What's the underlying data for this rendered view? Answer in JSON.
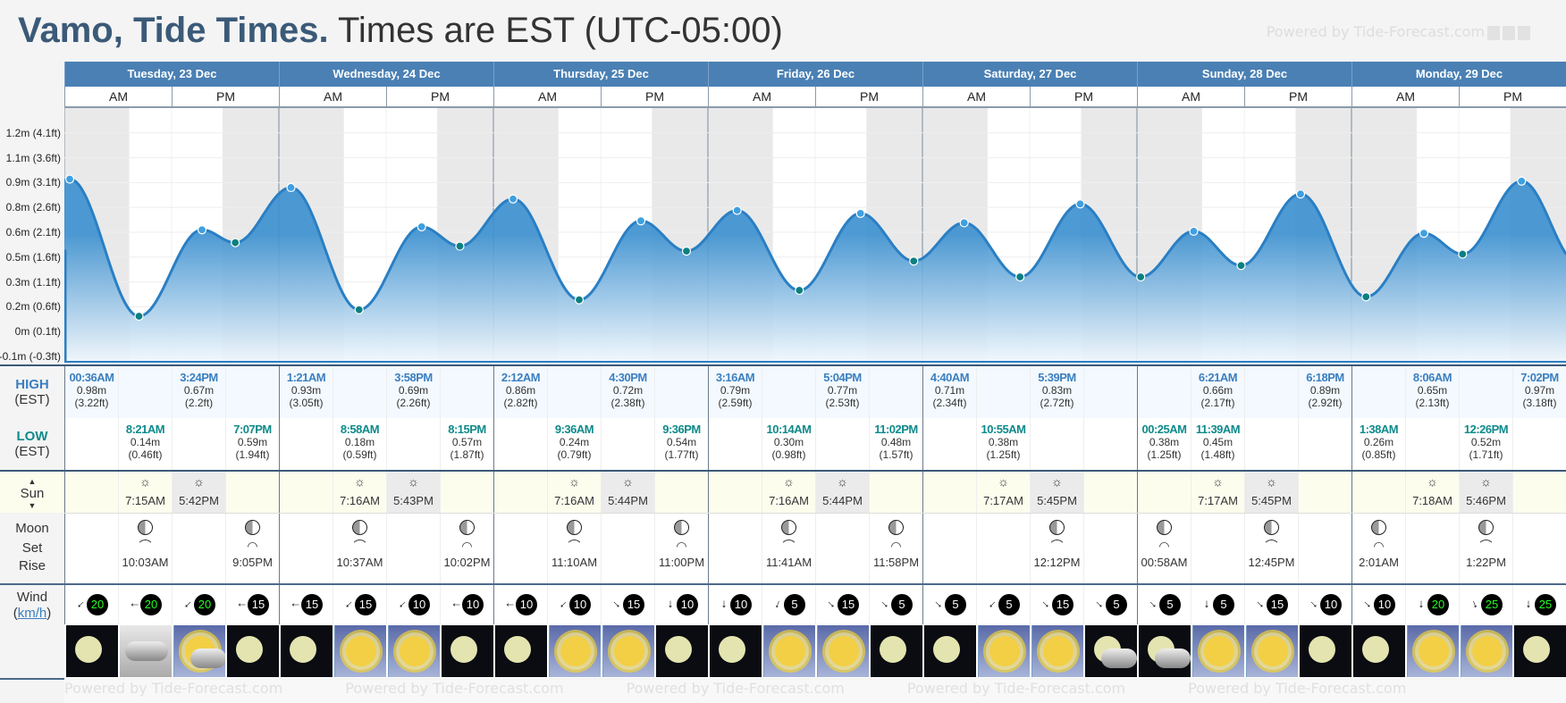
{
  "header": {
    "location": "Vamo, Tide Times.",
    "timezone": "Times are EST (UTC-05:00)",
    "watermark": "Powered by Tide-Forecast.com"
  },
  "labels": {
    "high": "HIGH",
    "low": "LOW",
    "tz": "(EST)",
    "sun": "Sun",
    "moon": "Moon",
    "set": "Set",
    "rise": "Rise",
    "wind": "Wind",
    "wind_unit": "km/h",
    "am": "AM",
    "pm": "PM"
  },
  "colors": {
    "header_bar": "#4a80b4",
    "high": "#3b7fc0",
    "low": "#0f8a8a",
    "line": "#2a7fc4"
  },
  "days": [
    {
      "label": "Tuesday, 23 Dec",
      "cells": [
        {
          "high": {
            "time": "00:36AM",
            "m": "0.98m",
            "ft": "(3.22ft)"
          },
          "wind": {
            "speed": 20,
            "dir": 225
          },
          "weather": "night"
        },
        {
          "low": {
            "time": "8:21AM",
            "m": "0.14m",
            "ft": "(0.46ft)"
          },
          "sun": {
            "type": "rise",
            "time": "7:15AM"
          },
          "moon": {
            "type": "rise",
            "time": "10:03AM"
          },
          "wind": {
            "speed": 20,
            "dir": 270
          },
          "weather": "cloudy"
        },
        {
          "high": {
            "time": "3:24PM",
            "m": "0.67m",
            "ft": "(2.2ft)"
          },
          "sun": {
            "type": "set",
            "time": "5:42PM"
          },
          "wind": {
            "speed": 20,
            "dir": 225
          },
          "weather": "sun-cloud"
        },
        {
          "low": {
            "time": "7:07PM",
            "m": "0.59m",
            "ft": "(1.94ft)"
          },
          "moon": {
            "type": "set",
            "time": "9:05PM"
          },
          "wind": {
            "speed": 15,
            "dir": 270
          },
          "weather": "night"
        }
      ]
    },
    {
      "label": "Wednesday, 24 Dec",
      "cells": [
        {
          "high": {
            "time": "1:21AM",
            "m": "0.93m",
            "ft": "(3.05ft)"
          },
          "wind": {
            "speed": 15,
            "dir": 270
          },
          "weather": "night"
        },
        {
          "low": {
            "time": "8:58AM",
            "m": "0.18m",
            "ft": "(0.59ft)"
          },
          "sun": {
            "type": "rise",
            "time": "7:16AM"
          },
          "moon": {
            "type": "rise",
            "time": "10:37AM"
          },
          "wind": {
            "speed": 15,
            "dir": 225
          },
          "weather": "day"
        },
        {
          "high": {
            "time": "3:58PM",
            "m": "0.69m",
            "ft": "(2.26ft)"
          },
          "sun": {
            "type": "set",
            "time": "5:43PM"
          },
          "wind": {
            "speed": 10,
            "dir": 225
          },
          "weather": "day"
        },
        {
          "low": {
            "time": "8:15PM",
            "m": "0.57m",
            "ft": "(1.87ft)"
          },
          "moon": {
            "type": "set",
            "time": "10:02PM"
          },
          "wind": {
            "speed": 10,
            "dir": 270
          },
          "weather": "night"
        }
      ]
    },
    {
      "label": "Thursday, 25 Dec",
      "cells": [
        {
          "high": {
            "time": "2:12AM",
            "m": "0.86m",
            "ft": "(2.82ft)"
          },
          "wind": {
            "speed": 10,
            "dir": 270
          },
          "weather": "night"
        },
        {
          "low": {
            "time": "9:36AM",
            "m": "0.24m",
            "ft": "(0.79ft)"
          },
          "sun": {
            "type": "rise",
            "time": "7:16AM"
          },
          "moon": {
            "type": "rise",
            "time": "11:10AM"
          },
          "wind": {
            "speed": 10,
            "dir": 225
          },
          "weather": "day"
        },
        {
          "high": {
            "time": "4:30PM",
            "m": "0.72m",
            "ft": "(2.38ft)"
          },
          "sun": {
            "type": "set",
            "time": "5:44PM"
          },
          "wind": {
            "speed": 15,
            "dir": 135
          },
          "weather": "day"
        },
        {
          "low": {
            "time": "9:36PM",
            "m": "0.54m",
            "ft": "(1.77ft)"
          },
          "moon": {
            "type": "set",
            "time": "11:00PM"
          },
          "wind": {
            "speed": 10,
            "dir": 180
          },
          "weather": "night"
        }
      ]
    },
    {
      "label": "Friday, 26 Dec",
      "cells": [
        {
          "high": {
            "time": "3:16AM",
            "m": "0.79m",
            "ft": "(2.59ft)"
          },
          "wind": {
            "speed": 10,
            "dir": 180
          },
          "weather": "night"
        },
        {
          "low": {
            "time": "10:14AM",
            "m": "0.30m",
            "ft": "(0.98ft)"
          },
          "sun": {
            "type": "rise",
            "time": "7:16AM"
          },
          "moon": {
            "type": "rise",
            "time": "11:41AM"
          },
          "wind": {
            "speed": 5,
            "dir": 200
          },
          "weather": "day"
        },
        {
          "high": {
            "time": "5:04PM",
            "m": "0.77m",
            "ft": "(2.53ft)"
          },
          "sun": {
            "type": "set",
            "time": "5:44PM"
          },
          "wind": {
            "speed": 15,
            "dir": 135
          },
          "weather": "day"
        },
        {
          "low": {
            "time": "11:02PM",
            "m": "0.48m",
            "ft": "(1.57ft)"
          },
          "moon": {
            "type": "set",
            "time": "11:58PM"
          },
          "wind": {
            "speed": 5,
            "dir": 135
          },
          "weather": "night"
        }
      ]
    },
    {
      "label": "Saturday, 27 Dec",
      "cells": [
        {
          "high": {
            "time": "4:40AM",
            "m": "0.71m",
            "ft": "(2.34ft)"
          },
          "wind": {
            "speed": 5,
            "dir": 135
          },
          "weather": "night"
        },
        {
          "low": {
            "time": "10:55AM",
            "m": "0.38m",
            "ft": "(1.25ft)"
          },
          "sun": {
            "type": "rise",
            "time": "7:17AM"
          },
          "wind": {
            "speed": 5,
            "dir": 225
          },
          "weather": "day"
        },
        {
          "high": {
            "time": "5:39PM",
            "m": "0.83m",
            "ft": "(2.72ft)"
          },
          "sun": {
            "type": "set",
            "time": "5:45PM"
          },
          "moon": {
            "type": "rise",
            "time": "12:12PM"
          },
          "wind": {
            "speed": 15,
            "dir": 135
          },
          "weather": "day"
        },
        {
          "wind": {
            "speed": 5,
            "dir": 135
          },
          "weather": "moon-cloud"
        }
      ]
    },
    {
      "label": "Sunday, 28 Dec",
      "cells": [
        {
          "low": {
            "time": "00:25AM",
            "m": "0.38m",
            "ft": "(1.25ft)"
          },
          "moon": {
            "type": "set",
            "time": "00:58AM"
          },
          "wind": {
            "speed": 5,
            "dir": 135
          },
          "weather": "moon-cloud"
        },
        {
          "high": {
            "time": "6:21AM",
            "m": "0.66m",
            "ft": "(2.17ft)"
          },
          "low": {
            "time": "11:39AM",
            "m": "0.45m",
            "ft": "(1.48ft)"
          },
          "sun": {
            "type": "rise",
            "time": "7:17AM"
          },
          "wind": {
            "speed": 5,
            "dir": 180
          },
          "weather": "day"
        },
        {
          "sun": {
            "type": "set",
            "time": "5:45PM"
          },
          "moon": {
            "type": "rise",
            "time": "12:45PM"
          },
          "wind": {
            "speed": 15,
            "dir": 135
          },
          "weather": "day"
        },
        {
          "high": {
            "time": "6:18PM",
            "m": "0.89m",
            "ft": "(2.92ft)"
          },
          "wind": {
            "speed": 10,
            "dir": 135
          },
          "weather": "night"
        }
      ]
    },
    {
      "label": "Monday, 29 Dec",
      "cells": [
        {
          "low": {
            "time": "1:38AM",
            "m": "0.26m",
            "ft": "(0.85ft)"
          },
          "moon": {
            "type": "set",
            "time": "2:01AM"
          },
          "wind": {
            "speed": 10,
            "dir": 135
          },
          "weather": "night"
        },
        {
          "high": {
            "time": "8:06AM",
            "m": "0.65m",
            "ft": "(2.13ft)"
          },
          "sun": {
            "type": "rise",
            "time": "7:18AM"
          },
          "wind": {
            "speed": 20,
            "dir": 180
          },
          "weather": "day"
        },
        {
          "low": {
            "time": "12:26PM",
            "m": "0.52m",
            "ft": "(1.71ft)"
          },
          "sun": {
            "type": "set",
            "time": "5:46PM"
          },
          "moon": {
            "type": "rise",
            "time": "1:22PM"
          },
          "wind": {
            "speed": 25,
            "dir": 160
          },
          "weather": "day"
        },
        {
          "high": {
            "time": "7:02PM",
            "m": "0.97m",
            "ft": "(3.18ft)"
          },
          "wind": {
            "speed": 25,
            "dir": 180
          },
          "weather": "night"
        }
      ]
    }
  ],
  "chart_data": {
    "type": "area",
    "title": "",
    "xlabel": "",
    "ylabel": "Tide height",
    "y_ticks": [
      "1.2m (4.1ft)",
      "1.1m (3.6ft)",
      "0.9m (3.1ft)",
      "0.8m (2.6ft)",
      "0.6m (2.1ft)",
      "0.5m (1.6ft)",
      "0.3m (1.1ft)",
      "0.2m (0.6ft)",
      "0m (0.1ft)",
      "-0.1m (-0.3ft)"
    ],
    "y_tick_ft": [
      4.15,
      3.65,
      3.15,
      2.65,
      2.15,
      1.65,
      1.15,
      0.65,
      0.15,
      -0.35
    ],
    "x_unit": "hours since Tue 23 Dec 00:00",
    "points": [
      {
        "hour": 0.6,
        "ft": 3.22,
        "type": "high"
      },
      {
        "hour": 8.35,
        "ft": 0.46,
        "type": "low"
      },
      {
        "hour": 15.4,
        "ft": 2.2,
        "type": "high"
      },
      {
        "hour": 19.12,
        "ft": 1.94,
        "type": "low"
      },
      {
        "hour": 25.35,
        "ft": 3.05,
        "type": "high"
      },
      {
        "hour": 32.97,
        "ft": 0.59,
        "type": "low"
      },
      {
        "hour": 39.97,
        "ft": 2.26,
        "type": "high"
      },
      {
        "hour": 44.25,
        "ft": 1.87,
        "type": "low"
      },
      {
        "hour": 50.2,
        "ft": 2.82,
        "type": "high"
      },
      {
        "hour": 57.6,
        "ft": 0.79,
        "type": "low"
      },
      {
        "hour": 64.5,
        "ft": 2.38,
        "type": "high"
      },
      {
        "hour": 69.6,
        "ft": 1.77,
        "type": "low"
      },
      {
        "hour": 75.27,
        "ft": 2.59,
        "type": "high"
      },
      {
        "hour": 82.23,
        "ft": 0.98,
        "type": "low"
      },
      {
        "hour": 89.07,
        "ft": 2.53,
        "type": "high"
      },
      {
        "hour": 95.03,
        "ft": 1.57,
        "type": "low"
      },
      {
        "hour": 100.67,
        "ft": 2.34,
        "type": "high"
      },
      {
        "hour": 106.92,
        "ft": 1.25,
        "type": "low"
      },
      {
        "hour": 113.65,
        "ft": 2.72,
        "type": "high"
      },
      {
        "hour": 120.42,
        "ft": 1.25,
        "type": "low"
      },
      {
        "hour": 126.35,
        "ft": 2.17,
        "type": "high"
      },
      {
        "hour": 131.65,
        "ft": 1.48,
        "type": "low"
      },
      {
        "hour": 138.3,
        "ft": 2.92,
        "type": "high"
      },
      {
        "hour": 145.63,
        "ft": 0.85,
        "type": "low"
      },
      {
        "hour": 152.1,
        "ft": 2.13,
        "type": "high"
      },
      {
        "hour": 156.43,
        "ft": 1.71,
        "type": "low"
      },
      {
        "hour": 163.03,
        "ft": 3.18,
        "type": "high"
      }
    ]
  }
}
